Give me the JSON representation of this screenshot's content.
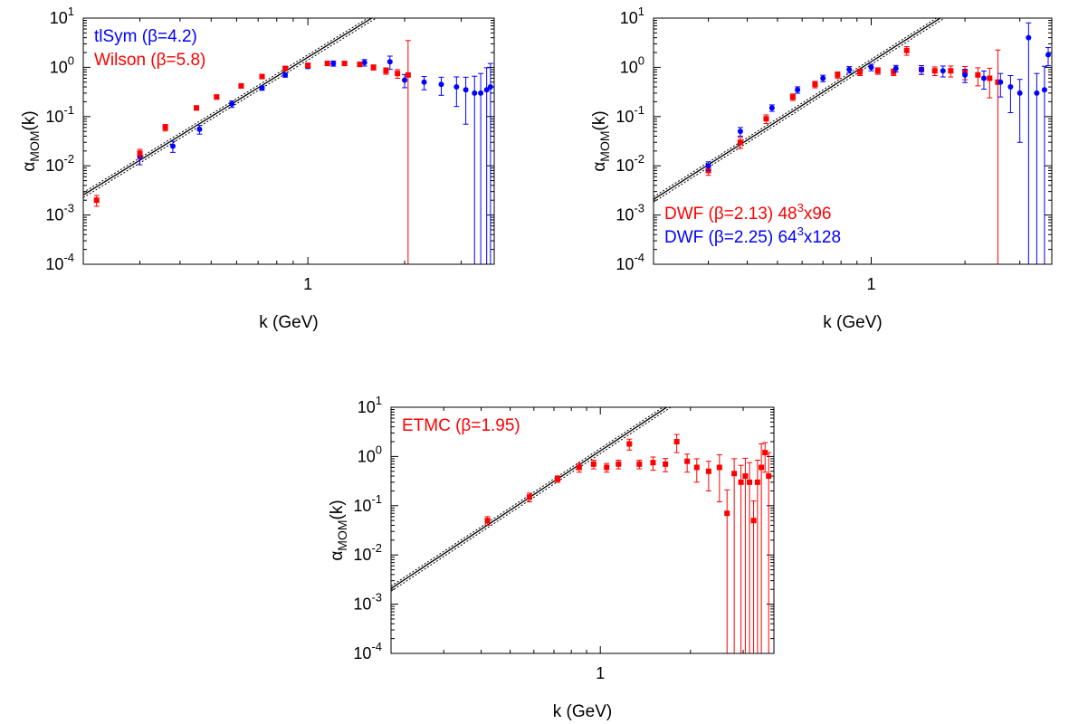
{
  "chart_data": [
    {
      "type": "scatter",
      "xlabel": "k (GeV)",
      "ylabel_main": "α",
      "ylabel_sub": "MOM",
      "ylabel_tail": "(k)",
      "xscale": "log",
      "yscale": "log",
      "xlim": [
        0.2,
        3.8
      ],
      "ylim": [
        0.0001,
        10
      ],
      "x_ticks": [
        {
          "value": 1,
          "label": "1"
        }
      ],
      "y_ticks": [
        {
          "value": 0.0001,
          "base": "10",
          "exp": "-4"
        },
        {
          "value": 0.001,
          "base": "10",
          "exp": "-3"
        },
        {
          "value": 0.01,
          "base": "10",
          "exp": "-2"
        },
        {
          "value": 0.1,
          "base": "10",
          "exp": "-1"
        },
        {
          "value": 1,
          "base": "10",
          "exp": "0"
        },
        {
          "value": 10,
          "base": "10",
          "exp": "1"
        }
      ],
      "fit": {
        "coef": 1.6,
        "power": 4,
        "band": 0.12
      },
      "legend_position": "top-left",
      "legend": [
        {
          "name": "tlSym (β=4.2)",
          "color": "#0000ff"
        },
        {
          "name": "Wilson (β=5.8)",
          "color": "#ff0000"
        }
      ],
      "series": [
        {
          "name": "tlSym (β=4.2)",
          "color": "#0000ff",
          "marker": "circle",
          "x": [
            0.3,
            0.38,
            0.46,
            0.58,
            0.72,
            0.85,
            1.0,
            1.2,
            1.5,
            1.8,
            2.0,
            2.3,
            2.6,
            2.9,
            3.1,
            3.3,
            3.45,
            3.6,
            3.7
          ],
          "y": [
            0.015,
            0.025,
            0.055,
            0.18,
            0.38,
            0.7,
            1.05,
            1.2,
            1.25,
            1.3,
            0.55,
            0.5,
            0.45,
            0.4,
            0.35,
            0.3,
            0.3,
            0.35,
            0.4
          ],
          "yerr": [
            0.3,
            0.25,
            0.2,
            0.15,
            0.1,
            0.1,
            0.1,
            0.12,
            0.15,
            0.3,
            0.3,
            0.3,
            0.4,
            0.6,
            0.8,
            1.2,
            1.5,
            1.8,
            2.0
          ]
        },
        {
          "name": "Wilson (β=5.8)",
          "color": "#ff0000",
          "marker": "square",
          "x": [
            0.22,
            0.3,
            0.36,
            0.45,
            0.52,
            0.62,
            0.72,
            0.85,
            1.0,
            1.15,
            1.3,
            1.45,
            1.6,
            1.75,
            1.9,
            2.05
          ],
          "y": [
            0.002,
            0.018,
            0.06,
            0.15,
            0.25,
            0.42,
            0.65,
            0.95,
            1.1,
            1.2,
            1.2,
            1.15,
            1.0,
            0.85,
            0.75,
            0.7
          ],
          "yerr": [
            0.25,
            0.2,
            0.15,
            0.1,
            0.1,
            0.1,
            0.1,
            0.1,
            0.1,
            0.1,
            0.1,
            0.1,
            0.12,
            0.15,
            0.2,
            4.0
          ]
        }
      ]
    },
    {
      "type": "scatter",
      "xlabel": "k (GeV)",
      "ylabel_main": "α",
      "ylabel_sub": "MOM",
      "ylabel_tail": "(k)",
      "xscale": "log",
      "yscale": "log",
      "xlim": [
        0.2,
        3.8
      ],
      "ylim": [
        0.0001,
        10
      ],
      "x_ticks": [
        {
          "value": 1,
          "label": "1"
        }
      ],
      "y_ticks": [
        {
          "value": 0.0001,
          "base": "10",
          "exp": "-4"
        },
        {
          "value": 0.001,
          "base": "10",
          "exp": "-3"
        },
        {
          "value": 0.01,
          "base": "10",
          "exp": "-2"
        },
        {
          "value": 0.1,
          "base": "10",
          "exp": "-1"
        },
        {
          "value": 1,
          "base": "10",
          "exp": "0"
        },
        {
          "value": 10,
          "base": "10",
          "exp": "1"
        }
      ],
      "fit": {
        "coef": 1.3,
        "power": 4,
        "band": 0.12
      },
      "legend_position": "bottom-left",
      "legend": [
        {
          "name": "DWF (β=2.13) 48",
          "sup": "3",
          "suffix": "x96",
          "color": "#ff0000"
        },
        {
          "name": "DWF (β=2.25) 64",
          "sup": "3",
          "suffix": "x128",
          "color": "#0000ff"
        }
      ],
      "series": [
        {
          "name": "DWF (β=2.13) 48³x96",
          "color": "#ff0000",
          "marker": "square",
          "x": [
            0.3,
            0.38,
            0.46,
            0.56,
            0.66,
            0.78,
            0.92,
            1.05,
            1.18,
            1.3,
            1.45,
            1.6,
            1.8,
            2.0,
            2.2,
            2.4,
            2.55
          ],
          "y": [
            0.008,
            0.03,
            0.09,
            0.25,
            0.45,
            0.7,
            0.8,
            0.85,
            0.8,
            2.2,
            0.9,
            0.85,
            0.85,
            0.8,
            0.7,
            0.6,
            0.5
          ],
          "yerr": [
            0.2,
            0.25,
            0.2,
            0.15,
            0.15,
            0.15,
            0.15,
            0.15,
            0.15,
            0.2,
            0.2,
            0.2,
            0.25,
            0.3,
            0.4,
            0.6,
            3.5
          ]
        },
        {
          "name": "DWF (β=2.25) 64³x128",
          "color": "#0000ff",
          "marker": "circle",
          "x": [
            0.3,
            0.38,
            0.48,
            0.58,
            0.7,
            0.85,
            1.0,
            1.2,
            1.45,
            1.7,
            2.0,
            2.3,
            2.6,
            2.8,
            3.0,
            3.2,
            3.4,
            3.6,
            3.7
          ],
          "y": [
            0.01,
            0.05,
            0.15,
            0.35,
            0.6,
            0.9,
            1.0,
            0.95,
            0.9,
            0.85,
            0.7,
            0.6,
            0.5,
            0.4,
            0.3,
            4.0,
            0.3,
            0.35,
            1.8
          ],
          "yerr": [
            0.2,
            0.2,
            0.15,
            0.15,
            0.15,
            0.15,
            0.15,
            0.15,
            0.2,
            0.25,
            0.3,
            0.4,
            0.5,
            0.7,
            0.9,
            1.0,
            1.5,
            2.0,
            0.4
          ]
        }
      ]
    },
    {
      "type": "scatter",
      "xlabel": "k (GeV)",
      "ylabel_main": "α",
      "ylabel_sub": "MOM",
      "ylabel_tail": "(k)",
      "xscale": "log",
      "yscale": "log",
      "xlim": [
        0.2,
        3.8
      ],
      "ylim": [
        0.0001,
        10
      ],
      "x_ticks": [
        {
          "value": 1,
          "label": "1"
        }
      ],
      "y_ticks": [
        {
          "value": 0.0001,
          "base": "10",
          "exp": "-4"
        },
        {
          "value": 0.001,
          "base": "10",
          "exp": "-3"
        },
        {
          "value": 0.01,
          "base": "10",
          "exp": "-2"
        },
        {
          "value": 0.1,
          "base": "10",
          "exp": "-1"
        },
        {
          "value": 1,
          "base": "10",
          "exp": "0"
        },
        {
          "value": 10,
          "base": "10",
          "exp": "1"
        }
      ],
      "fit": {
        "coef": 1.3,
        "power": 4,
        "band": 0.12
      },
      "legend_position": "top-left",
      "legend": [
        {
          "name": "ETMC (β=1.95)",
          "color": "#ff0000"
        }
      ],
      "series": [
        {
          "name": "ETMC (β=1.95)",
          "color": "#ff0000",
          "marker": "square",
          "x": [
            0.42,
            0.58,
            0.72,
            0.85,
            0.95,
            1.05,
            1.15,
            1.25,
            1.35,
            1.5,
            1.65,
            1.8,
            1.95,
            2.1,
            2.3,
            2.5,
            2.65,
            2.8,
            2.95,
            3.05,
            3.15,
            3.25,
            3.35,
            3.45,
            3.55,
            3.65
          ],
          "y": [
            0.05,
            0.15,
            0.35,
            0.6,
            0.7,
            0.6,
            0.7,
            1.8,
            0.7,
            0.75,
            0.7,
            2.0,
            0.8,
            0.6,
            0.5,
            0.6,
            0.07,
            0.45,
            0.3,
            0.4,
            0.3,
            0.05,
            0.3,
            0.6,
            1.2,
            0.4
          ],
          "yerr": [
            0.2,
            0.2,
            0.15,
            0.2,
            0.2,
            0.2,
            0.2,
            0.25,
            0.2,
            0.3,
            0.3,
            0.4,
            0.4,
            0.5,
            0.6,
            0.8,
            2.0,
            1.0,
            1.2,
            1.3,
            1.5,
            1.5,
            1.8,
            2.0,
            0.6,
            2.0
          ]
        }
      ]
    }
  ]
}
